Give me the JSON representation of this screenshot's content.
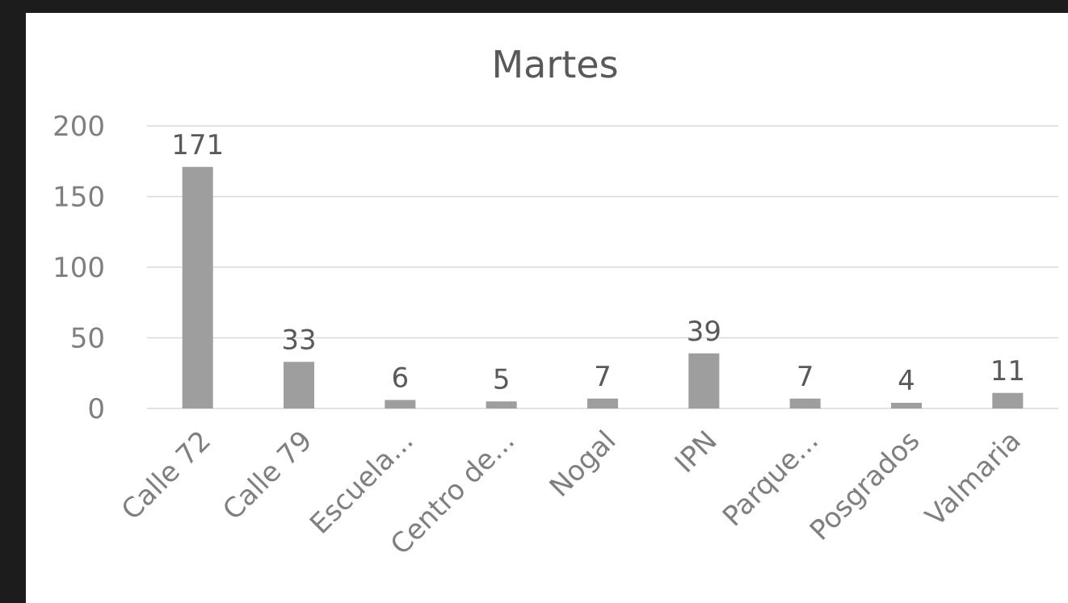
{
  "chart_data": {
    "type": "bar",
    "title": "Martes",
    "categories": [
      "Calle 72",
      "Calle 79",
      "Escuela...",
      "Centro de...",
      "Nogal",
      "IPN",
      "Parque...",
      "Posgrados",
      "Valmaria"
    ],
    "values": [
      171,
      33,
      6,
      5,
      7,
      39,
      7,
      4,
      11
    ],
    "data_labels": [
      "171",
      "33",
      "6",
      "5",
      "7",
      "39",
      "7",
      "4",
      "11"
    ],
    "y_ticks": [
      "0",
      "50",
      "100",
      "150",
      "200"
    ],
    "ylim": [
      0,
      200
    ],
    "xlabel": "",
    "ylabel": "",
    "grid": true,
    "legend": "none",
    "bar_color": "#9e9e9e"
  }
}
